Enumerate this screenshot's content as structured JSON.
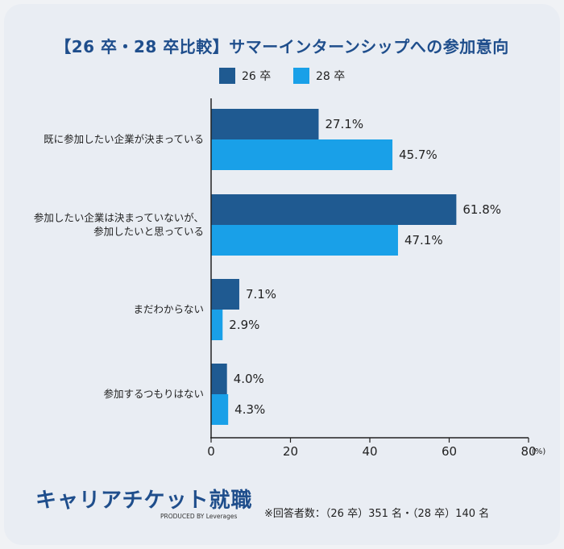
{
  "title": "【26 卒・28 卒比較】サマーインターンシップへの参加意向",
  "chart_data": {
    "type": "bar",
    "orientation": "horizontal",
    "categories": [
      "既に参加したい企業が決まっている",
      "参加したい企業は決まっていないが、\n参加したいと思っている",
      "まだわからない",
      "参加するつもりはない"
    ],
    "series": [
      {
        "name": "26 卒",
        "color": "#1f5a91",
        "values": [
          27.1,
          61.8,
          7.1,
          4.0
        ],
        "labels": [
          "27.1%",
          "61.8%",
          "7.1%",
          "4.0%"
        ]
      },
      {
        "name": "28 卒",
        "color": "#19a0e8",
        "values": [
          45.7,
          47.1,
          2.9,
          4.3
        ],
        "labels": [
          "45.7%",
          "47.1%",
          "2.9%",
          "4.3%"
        ]
      }
    ],
    "xlim": [
      0,
      80
    ],
    "xticks": [
      0,
      20,
      40,
      60,
      80
    ],
    "unit": "(%)",
    "legend_position": "top"
  },
  "footer": {
    "logo_text": "キャリアチケット就職",
    "logo_sub": "PRODUCED BY Leverages",
    "note": "※回答者数：（26 卒）351 名・（28 卒）140 名"
  }
}
